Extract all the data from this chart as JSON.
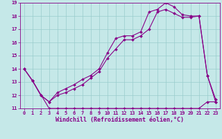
{
  "bg_color": "#c5e8e8",
  "line_color": "#880088",
  "grid_color": "#99cccc",
  "xlabel": "Windchill (Refroidissement éolien,°C)",
  "xlim": [
    -0.5,
    23.5
  ],
  "ylim": [
    11,
    19
  ],
  "xticks": [
    0,
    1,
    2,
    3,
    4,
    5,
    6,
    7,
    8,
    9,
    10,
    11,
    12,
    13,
    14,
    15,
    16,
    17,
    18,
    19,
    20,
    21,
    22,
    23
  ],
  "yticks": [
    11,
    12,
    13,
    14,
    15,
    16,
    17,
    18,
    19
  ],
  "line1_x": [
    0,
    1,
    3,
    4,
    5,
    6,
    7,
    8,
    9,
    10,
    11,
    12,
    13,
    14,
    15,
    16,
    17,
    18,
    19,
    20,
    21,
    22,
    23
  ],
  "line1_y": [
    14.0,
    13.1,
    11.0,
    11.0,
    11.0,
    11.0,
    11.0,
    11.0,
    11.0,
    11.0,
    11.0,
    11.0,
    11.0,
    11.0,
    11.0,
    11.0,
    11.0,
    11.0,
    11.0,
    11.0,
    11.0,
    11.5,
    11.5
  ],
  "line2_x": [
    0,
    1,
    2,
    3,
    4,
    5,
    6,
    7,
    8,
    9,
    10,
    11,
    12,
    13,
    14,
    15,
    16,
    17,
    18,
    19,
    20,
    21,
    22,
    23
  ],
  "line2_y": [
    14.0,
    13.1,
    12.0,
    11.5,
    12.0,
    12.2,
    12.5,
    12.8,
    13.3,
    13.8,
    14.8,
    15.5,
    16.2,
    16.2,
    16.5,
    17.0,
    18.3,
    18.5,
    18.2,
    17.9,
    17.9,
    18.0,
    13.5,
    11.5
  ],
  "line3_x": [
    0,
    1,
    2,
    3,
    4,
    5,
    6,
    7,
    8,
    9,
    10,
    11,
    12,
    13,
    14,
    15,
    16,
    17,
    18,
    19,
    20,
    21,
    22,
    23
  ],
  "line3_y": [
    14.0,
    13.1,
    12.0,
    11.5,
    12.2,
    12.5,
    12.8,
    13.2,
    13.5,
    14.0,
    15.2,
    16.3,
    16.5,
    16.5,
    16.8,
    18.3,
    18.5,
    19.0,
    18.7,
    18.1,
    18.0,
    18.0,
    13.5,
    11.7
  ],
  "marker": "D",
  "markersize": 2.0,
  "linewidth": 0.8,
  "tick_fontsize": 5.0,
  "label_fontsize": 6.0
}
